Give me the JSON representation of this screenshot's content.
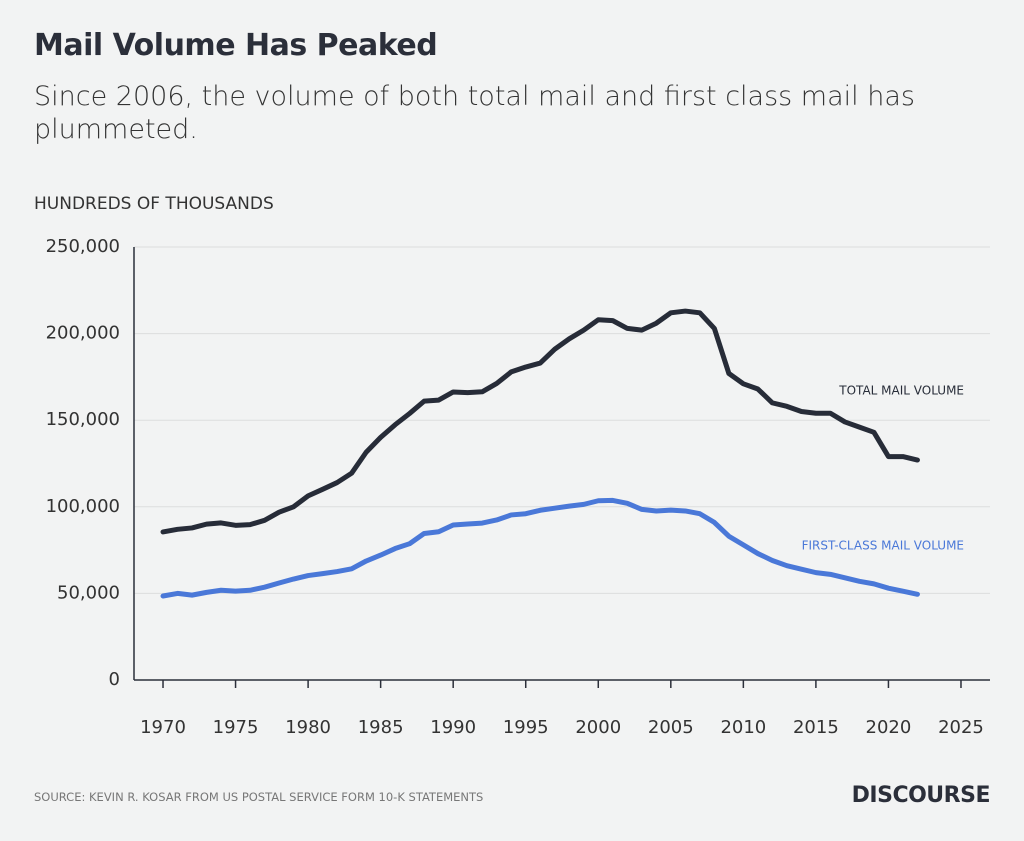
{
  "chart_data": {
    "type": "line",
    "title": "Mail Volume Has Peaked",
    "subtitle": "Since 2006, the volume of both total mail and first class mail has plummeted.",
    "y_label": "HUNDREDS OF THOUSANDS",
    "source": "SOURCE: KEVIN R. KOSAR FROM US POSTAL SERVICE FORM 10-K STATEMENTS",
    "brand": "DISCOURSE",
    "x": [
      1970,
      1971,
      1972,
      1973,
      1974,
      1975,
      1976,
      1977,
      1978,
      1979,
      1980,
      1981,
      1982,
      1983,
      1984,
      1985,
      1986,
      1987,
      1988,
      1989,
      1990,
      1991,
      1992,
      1993,
      1994,
      1995,
      1996,
      1997,
      1998,
      1999,
      2000,
      2001,
      2002,
      2003,
      2004,
      2005,
      2006,
      2007,
      2008,
      2009,
      2010,
      2011,
      2012,
      2013,
      2014,
      2015,
      2016,
      2017,
      2018,
      2019,
      2020,
      2021,
      2022
    ],
    "series": [
      {
        "name": "TOTAL MAIL VOLUME",
        "color": "#272c38",
        "values": [
          85500,
          87000,
          87800,
          90000,
          90700,
          89300,
          89700,
          92200,
          96900,
          100000,
          106300,
          110100,
          114000,
          119400,
          131500,
          140100,
          147400,
          153900,
          161000,
          161600,
          166300,
          165900,
          166400,
          171200,
          177900,
          180700,
          183000,
          191000,
          197000,
          202000,
          208000,
          207500,
          203000,
          202000,
          206000,
          212000,
          213000,
          212000,
          203000,
          177000,
          171000,
          168000,
          160000,
          158000,
          155000,
          154000,
          154000,
          149000,
          146000,
          143000,
          129000,
          129000,
          127000
        ]
      },
      {
        "name": "FIRST-CLASS MAIL VOLUME",
        "color": "#4a78d8",
        "values": [
          48500,
          50000,
          49000,
          50600,
          51800,
          51300,
          51800,
          53600,
          56000,
          58300,
          60300,
          61400,
          62600,
          64200,
          68700,
          72100,
          75900,
          78700,
          84600,
          85600,
          89500,
          90100,
          90600,
          92400,
          95300,
          96000,
          98000,
          99200,
          100400,
          101400,
          103500,
          103700,
          102000,
          98500,
          97600,
          98100,
          97600,
          96000,
          91000,
          83000,
          78000,
          73000,
          69000,
          66000,
          64000,
          62000,
          61000,
          59000,
          57000,
          55500,
          53000,
          51300,
          49500
        ]
      }
    ],
    "xlim": [
      1968,
      2027
    ],
    "xticks": [
      1970,
      1975,
      1980,
      1985,
      1990,
      1995,
      2000,
      2005,
      2010,
      2015,
      2020,
      2025
    ],
    "ylim": [
      0,
      250000
    ],
    "yticks": [
      0,
      {
        "value": 50000,
        "label": "50,000"
      },
      {
        "value": 100000,
        "label": "100,000"
      },
      {
        "value": 150000,
        "label": "150,000"
      },
      {
        "value": 200000,
        "label": "200,000"
      },
      {
        "value": 250000,
        "label": "250,000"
      }
    ],
    "grid": true
  }
}
